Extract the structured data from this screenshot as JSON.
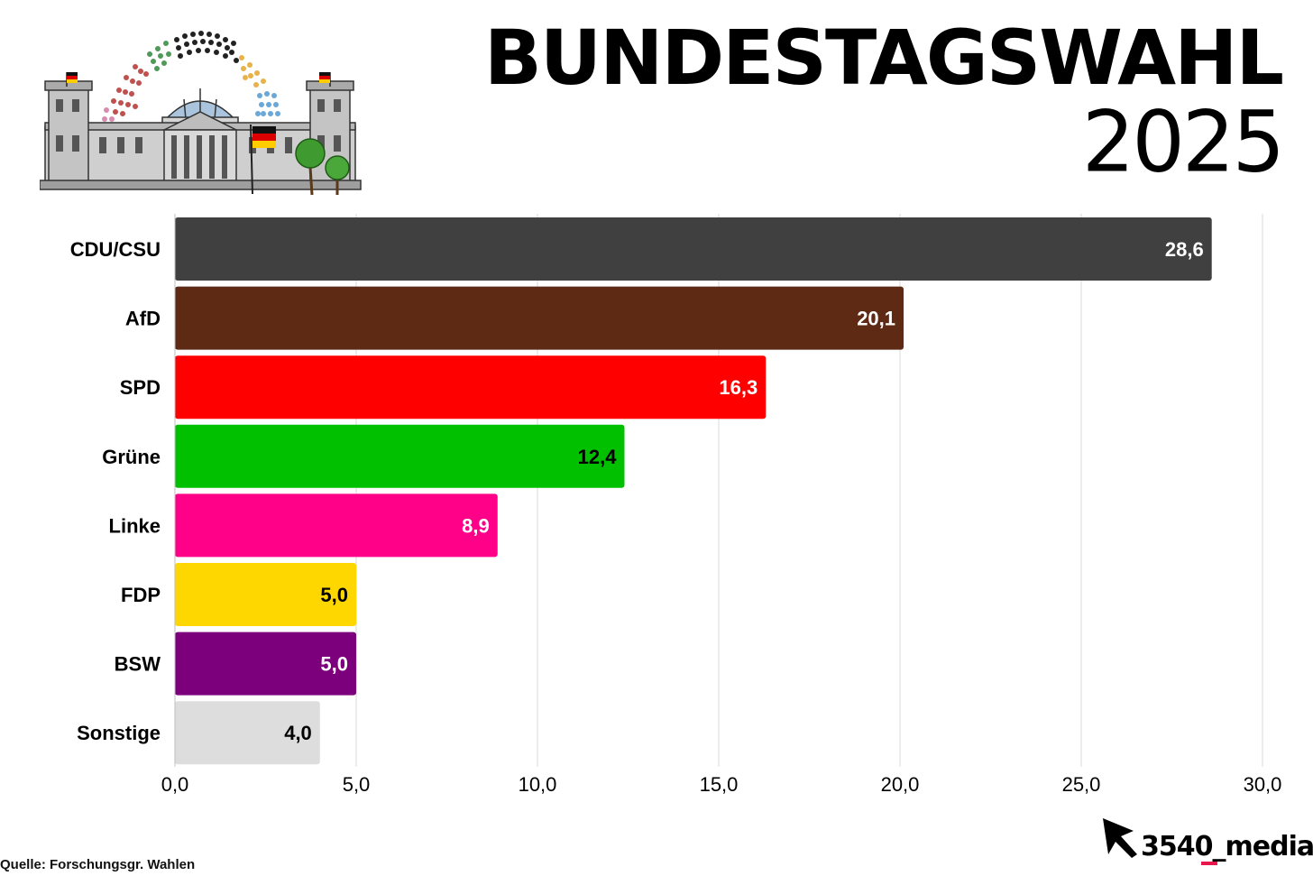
{
  "header": {
    "title": "BUNDESTAGSWAHL",
    "year": "2025"
  },
  "footer": {
    "source": "Quelle: Forschungsgr. Wahlen",
    "logo_text": "3540_media",
    "logo_accent": "#e8174b"
  },
  "chart_data": {
    "type": "bar",
    "orientation": "horizontal",
    "title": "",
    "xlabel": "",
    "ylabel": "",
    "xlim": [
      0,
      30
    ],
    "ticks": [
      0,
      5,
      10,
      15,
      20,
      25,
      30
    ],
    "tick_labels": [
      "0,0",
      "5,0",
      "10,0",
      "15,0",
      "20,0",
      "25,0",
      "30,0"
    ],
    "grid": "vertical",
    "legend": "none",
    "categories": [
      "CDU/CSU",
      "AfD",
      "SPD",
      "Grüne",
      "Linke",
      "FDP",
      "BSW",
      "Sonstige"
    ],
    "values": [
      28.6,
      20.1,
      16.3,
      12.4,
      8.9,
      5.0,
      5.0,
      4.0
    ],
    "value_labels": [
      "28,6",
      "20,1",
      "16,3",
      "12,4",
      "8,9",
      "5,0",
      "5,0",
      "4,0"
    ],
    "colors": [
      "#404040",
      "#5e2a14",
      "#ff0000",
      "#00c000",
      "#ff0088",
      "#ffd700",
      "#7c007c",
      "#dddddd"
    ],
    "label_colors": [
      "#ffffff",
      "#ffffff",
      "#ffffff",
      "#000000",
      "#ffffff",
      "#000000",
      "#ffffff",
      "#000000"
    ]
  }
}
